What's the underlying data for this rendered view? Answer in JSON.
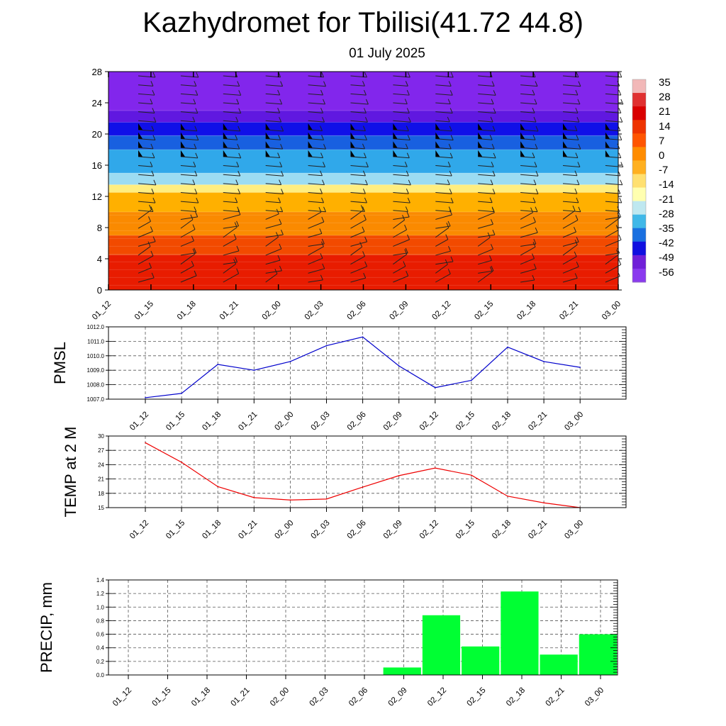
{
  "title": "Kazhydromet for Tbilisi(41.72 44.8)",
  "subtitle": "01 July 2025",
  "time_labels": [
    "01_12",
    "01_15",
    "01_18",
    "01_21",
    "02_00",
    "02_03",
    "02_06",
    "02_09",
    "02_12",
    "02_15",
    "02_18",
    "02_21",
    "03_00"
  ],
  "chart_data": [
    {
      "type": "heatmap",
      "yticks": [
        0,
        4,
        8,
        12,
        16,
        20,
        24,
        28
      ],
      "ylim": [
        0,
        28
      ],
      "colorbar": {
        "labels": [
          "35",
          "28",
          "21",
          "14",
          "7",
          "0",
          "-7",
          "-14",
          "-21",
          "-28",
          "-35",
          "-42",
          "-49",
          "-56"
        ],
        "colors": [
          "#f2b8b8",
          "#e03030",
          "#d90000",
          "#ee3300",
          "#ff5500",
          "#ff8c00",
          "#ffb020",
          "#ffe070",
          "#ffffb0",
          "#bfe8f0",
          "#40b8e8",
          "#1a70e0",
          "#1010e0",
          "#7020d8",
          "#8a3aee"
        ]
      },
      "colors": {
        "bands": [
          {
            "z0": 0,
            "z1": 4.5,
            "color": "#e81c00"
          },
          {
            "z0": 4.5,
            "z1": 7,
            "color": "#f24a00"
          },
          {
            "z0": 7,
            "z1": 10,
            "color": "#fa8a00"
          },
          {
            "z0": 10,
            "z1": 12.5,
            "color": "#ffb000"
          },
          {
            "z0": 12.5,
            "z1": 13.5,
            "color": "#ffee80"
          },
          {
            "z0": 13.5,
            "z1": 15,
            "color": "#9cdcf2"
          },
          {
            "z0": 15,
            "z1": 18,
            "color": "#30a8ea"
          },
          {
            "z0": 18,
            "z1": 19.8,
            "color": "#1860e0"
          },
          {
            "z0": 19.8,
            "z1": 21.5,
            "color": "#1010e8"
          },
          {
            "z0": 21.5,
            "z1": 23,
            "color": "#6018e0"
          },
          {
            "z0": 23,
            "z1": 28,
            "color": "#8226ec"
          }
        ]
      }
    },
    {
      "type": "line",
      "ylabel": "PMSL",
      "x": [
        "01_12",
        "01_15",
        "01_18",
        "01_21",
        "02_00",
        "02_03",
        "02_06",
        "02_09",
        "02_12",
        "02_15",
        "02_18",
        "02_21",
        "03_00"
      ],
      "values": [
        1007.1,
        1007.4,
        1009.4,
        1009.0,
        1009.6,
        1010.7,
        1011.3,
        1009.3,
        1007.8,
        1008.3,
        1010.6,
        1009.6,
        1009.2
      ],
      "ylim": [
        1007.0,
        1012.0
      ],
      "yticks": [
        "1007.0",
        "1008.0",
        "1009.0",
        "1010.0",
        "1011.0",
        "1012.0"
      ],
      "color": "#0000cc",
      "grid": true
    },
    {
      "type": "line",
      "ylabel": "TEMP at 2 M",
      "x": [
        "01_12",
        "01_15",
        "01_18",
        "01_21",
        "02_00",
        "02_03",
        "02_06",
        "02_09",
        "02_12",
        "02_15",
        "02_18",
        "02_21",
        "03_00"
      ],
      "values": [
        28.6,
        24.5,
        19.4,
        17.1,
        16.6,
        16.8,
        19.3,
        21.7,
        23.3,
        21.8,
        17.4,
        16.0,
        15.0
      ],
      "ylim": [
        15,
        30
      ],
      "yticks": [
        "15",
        "18",
        "21",
        "24",
        "27",
        "30"
      ],
      "color": "#ee0000",
      "grid": true
    },
    {
      "type": "bar",
      "ylabel": "PRECIP, mm",
      "categories": [
        "01_12",
        "01_15",
        "01_18",
        "01_21",
        "02_00",
        "02_03",
        "02_06",
        "02_09",
        "02_12",
        "02_15",
        "02_18",
        "02_21",
        "03_00"
      ],
      "values": [
        0,
        0,
        0,
        0,
        0,
        0,
        0,
        0.11,
        0.88,
        0.42,
        1.23,
        0.3,
        0.6
      ],
      "ylim": [
        0,
        1.4
      ],
      "yticks": [
        "0.0",
        "0.2",
        "0.4",
        "0.6",
        "0.8",
        "1.0",
        "1.2",
        "1.4"
      ],
      "color": "#00ff33",
      "grid": true
    }
  ]
}
